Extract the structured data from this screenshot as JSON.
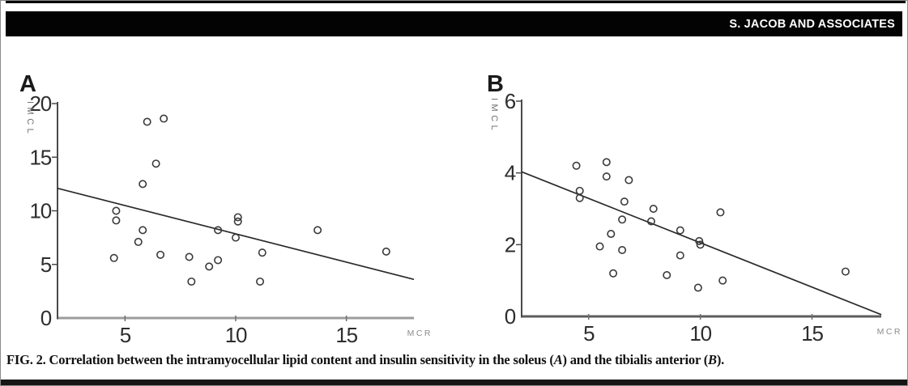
{
  "header": {
    "title": "S. JACOB AND ASSOCIATES"
  },
  "caption": {
    "lead": "FIG. 2. Correlation between the intramyocellular lipid content and insulin sensitivity in the soleus (",
    "a_label": "A",
    "mid": ") and the tibialis anterior (",
    "b_label": "B",
    "end": ")."
  },
  "chart_data": [
    {
      "type": "scatter",
      "panel_label": "A",
      "title": "",
      "xlabel": "MCR",
      "ylabel": "IMCL",
      "xlim": [
        1.95,
        18.05
      ],
      "ylim": [
        0,
        20
      ],
      "x_ticks": [
        5,
        10,
        15
      ],
      "y_ticks": [
        0,
        5,
        10,
        15,
        20
      ],
      "grid": false,
      "legend": "none",
      "marker": "open-circle",
      "points": [
        [
          6.0,
          18.3
        ],
        [
          6.75,
          18.6
        ],
        [
          6.4,
          14.4
        ],
        [
          5.8,
          12.5
        ],
        [
          4.6,
          10.0
        ],
        [
          4.6,
          9.1
        ],
        [
          5.8,
          8.2
        ],
        [
          5.6,
          7.1
        ],
        [
          4.5,
          5.6
        ],
        [
          6.6,
          5.9
        ],
        [
          7.9,
          5.7
        ],
        [
          8.0,
          3.4
        ],
        [
          8.8,
          4.8
        ],
        [
          9.2,
          5.4
        ],
        [
          9.2,
          8.2
        ],
        [
          10.1,
          9.4
        ],
        [
          10.1,
          9.0
        ],
        [
          10.0,
          7.5
        ],
        [
          11.2,
          6.1
        ],
        [
          11.1,
          3.4
        ],
        [
          13.7,
          8.2
        ],
        [
          16.8,
          6.2
        ]
      ],
      "trend_line": [
        [
          1.95,
          12.1
        ],
        [
          18.05,
          3.6
        ]
      ]
    },
    {
      "type": "scatter",
      "panel_label": "B",
      "title": "",
      "xlabel": "MCR",
      "ylabel": "IMCL",
      "xlim": [
        2.0,
        18.1
      ],
      "ylim": [
        0,
        6
      ],
      "x_ticks": [
        5,
        10,
        15
      ],
      "y_ticks": [
        0,
        2,
        4,
        6
      ],
      "grid": false,
      "legend": "none",
      "marker": "open-circle",
      "points": [
        [
          4.45,
          4.2
        ],
        [
          5.8,
          4.3
        ],
        [
          5.8,
          3.9
        ],
        [
          6.8,
          3.8
        ],
        [
          4.6,
          3.5
        ],
        [
          4.6,
          3.3
        ],
        [
          6.6,
          3.2
        ],
        [
          7.9,
          3.0
        ],
        [
          10.9,
          2.9
        ],
        [
          6.5,
          2.7
        ],
        [
          7.8,
          2.65
        ],
        [
          9.1,
          2.4
        ],
        [
          6.0,
          2.3
        ],
        [
          9.95,
          2.1
        ],
        [
          10.0,
          2.0
        ],
        [
          5.5,
          1.95
        ],
        [
          6.5,
          1.85
        ],
        [
          9.1,
          1.7
        ],
        [
          6.1,
          1.2
        ],
        [
          8.5,
          1.15
        ],
        [
          16.5,
          1.25
        ],
        [
          11.0,
          1.0
        ],
        [
          9.9,
          0.8
        ]
      ],
      "trend_line": [
        [
          2.0,
          4.03
        ],
        [
          18.1,
          0.05
        ]
      ]
    }
  ],
  "colors": {
    "header_bg": "#030303",
    "ink": "#2d2d2d",
    "axis_dark": "#4a4a4a",
    "axis_gray": "#9c9c9c",
    "label_gray": "#8c8c8c"
  }
}
